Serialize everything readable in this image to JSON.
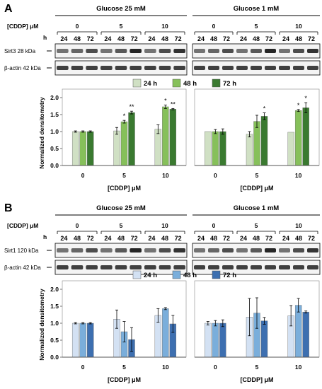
{
  "panels": [
    {
      "letter": "A",
      "groups": [
        "Glucose 25 mM",
        "Glucose 1 mM"
      ],
      "cddp_label": "[CDDP] μM",
      "h_label": "h",
      "doses": [
        "0",
        "5",
        "10"
      ],
      "times": [
        "24",
        "48",
        "72"
      ],
      "blots": [
        "Sirt3 28 kDa",
        "β-actin 42 kDa"
      ],
      "colors": [
        "#d0e0c4",
        "#86c05a",
        "#3a7a30"
      ]
    },
    {
      "letter": "B",
      "groups": [
        "Glucose 25 mM",
        "Glucose 1 mM"
      ],
      "cddp_label": "[CDDP] μM",
      "h_label": "h",
      "doses": [
        "0",
        "5",
        "10"
      ],
      "times": [
        "24",
        "48",
        "72"
      ],
      "blots": [
        "Sirt1 120 kDa",
        "β-actin 42 kDa"
      ],
      "colors": [
        "#d3e1f3",
        "#7aaedb",
        "#3d6fb0"
      ]
    }
  ],
  "chart_data": [
    {
      "type": "bar",
      "panel": "A",
      "condition": "Glucose 25 mM",
      "categories": [
        "0",
        "5",
        "10"
      ],
      "series": [
        {
          "name": "24 h",
          "values": [
            1.0,
            1.02,
            1.07
          ],
          "errors": [
            0.02,
            0.1,
            0.13
          ],
          "sig": [
            "",
            "",
            ""
          ]
        },
        {
          "name": "48 h",
          "values": [
            1.0,
            1.29,
            1.73
          ],
          "errors": [
            0.02,
            0.04,
            0.05
          ],
          "sig": [
            "",
            "*",
            "*"
          ]
        },
        {
          "name": "72 h",
          "values": [
            1.0,
            1.56,
            1.66
          ],
          "errors": [
            0.02,
            0.04,
            0.02
          ],
          "sig": [
            "",
            "**",
            "**"
          ]
        }
      ],
      "xlabel": "[CDDP] μM",
      "ylabel": "Normalized densitometry",
      "ylim": [
        0,
        2.0
      ],
      "yticks": [
        "0.0",
        "0.5",
        "1.0",
        "1.5",
        "2.0"
      ]
    },
    {
      "type": "bar",
      "panel": "A",
      "condition": "Glucose 1 mM",
      "categories": [
        "0",
        "5",
        "10"
      ],
      "series": [
        {
          "name": "24 h",
          "values": [
            1.0,
            0.92,
            0.98
          ],
          "errors": [
            0.0,
            0.08,
            0.0
          ],
          "sig": [
            "",
            "",
            ""
          ]
        },
        {
          "name": "48 h",
          "values": [
            1.0,
            1.3,
            1.62
          ],
          "errors": [
            0.06,
            0.18,
            0.03
          ],
          "sig": [
            "",
            "",
            "*"
          ]
        },
        {
          "name": "72 h",
          "values": [
            1.0,
            1.45,
            1.7
          ],
          "errors": [
            0.08,
            0.1,
            0.15
          ],
          "sig": [
            "",
            "*",
            "*"
          ]
        }
      ],
      "xlabel": "[CDDP] μM",
      "ylabel": "",
      "ylim": [
        0,
        2.0
      ],
      "yticks": []
    },
    {
      "type": "bar",
      "panel": "B",
      "condition": "Glucose 25 mM",
      "categories": [
        "0",
        "5",
        "10"
      ],
      "series": [
        {
          "name": "24 h",
          "values": [
            1.0,
            1.12,
            1.23
          ],
          "errors": [
            0.02,
            0.27,
            0.2
          ],
          "sig": [
            "",
            "",
            ""
          ]
        },
        {
          "name": "48 h",
          "values": [
            1.0,
            0.75,
            1.43
          ],
          "errors": [
            0.02,
            0.3,
            0.03
          ],
          "sig": [
            "",
            "",
            ""
          ]
        },
        {
          "name": "72 h",
          "values": [
            1.0,
            0.52,
            0.98
          ],
          "errors": [
            0.02,
            0.35,
            0.25
          ],
          "sig": [
            "",
            "",
            ""
          ]
        }
      ],
      "xlabel": "[CDDP] μM",
      "ylabel": "Normalized densitometry",
      "ylim": [
        0,
        2.0
      ],
      "yticks": [
        "0.0",
        "0.5",
        "1.0",
        "1.5",
        "2.0"
      ]
    },
    {
      "type": "bar",
      "panel": "B",
      "condition": "Glucose 1 mM",
      "categories": [
        "0",
        "5",
        "10"
      ],
      "series": [
        {
          "name": "24 h",
          "values": [
            1.0,
            1.18,
            1.22
          ],
          "errors": [
            0.05,
            0.55,
            0.3
          ],
          "sig": [
            "",
            "",
            ""
          ]
        },
        {
          "name": "48 h",
          "values": [
            1.0,
            1.3,
            1.53
          ],
          "errors": [
            0.08,
            0.45,
            0.2
          ],
          "sig": [
            "",
            "",
            ""
          ]
        },
        {
          "name": "72 h",
          "values": [
            1.0,
            1.07,
            1.33
          ],
          "errors": [
            0.1,
            0.1,
            0.03
          ],
          "sig": [
            "",
            "",
            ""
          ]
        }
      ],
      "xlabel": "[CDDP] μM",
      "ylabel": "",
      "ylim": [
        0,
        2.0
      ],
      "yticks": []
    }
  ]
}
